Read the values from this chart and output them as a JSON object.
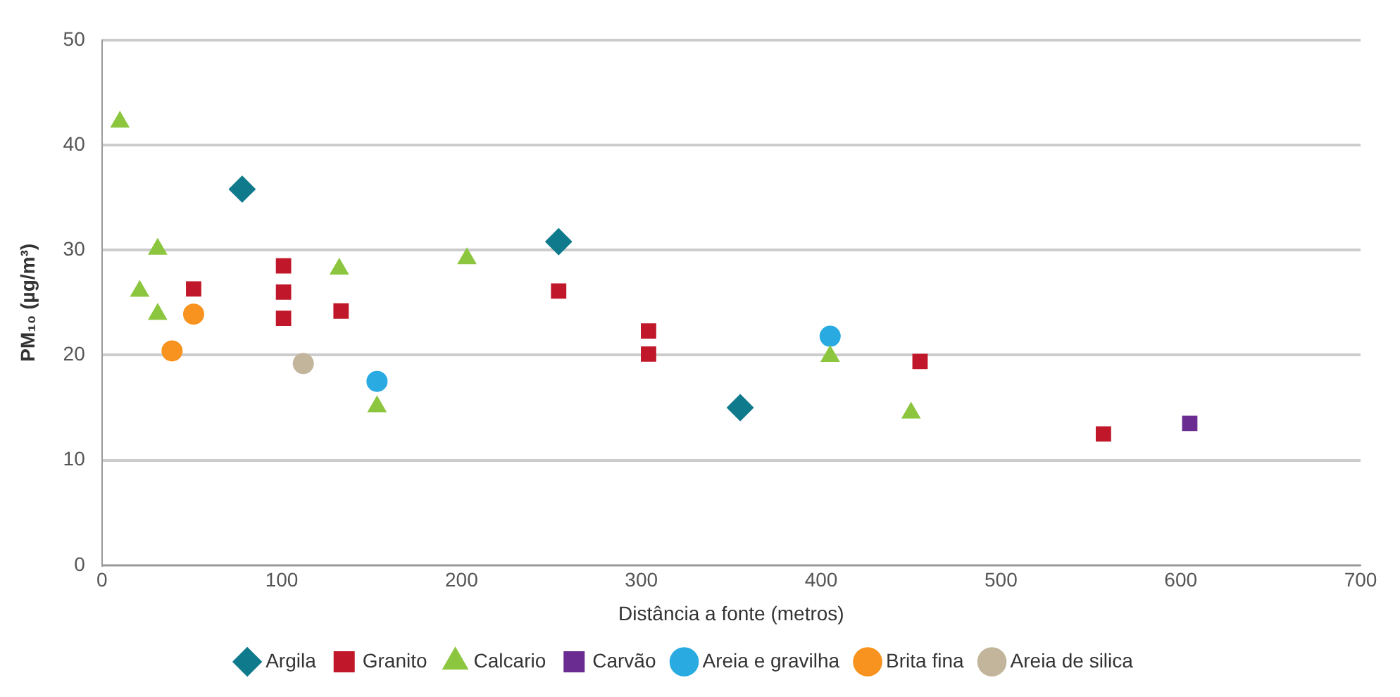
{
  "chart_data": {
    "type": "scatter",
    "xlabel": "Distância a fonte (metros)",
    "ylabel": "PM₁₀ (µg/m³)",
    "xlim": [
      0,
      700
    ],
    "xticks": [
      0,
      100,
      200,
      300,
      400,
      500,
      600,
      700
    ],
    "ylim": [
      0,
      50
    ],
    "yticks": [
      0,
      10,
      20,
      30,
      40,
      50
    ],
    "grid": "y",
    "legend": "bottom",
    "series": [
      {
        "name": "Argila",
        "color": "#0f7a8c",
        "marker": "diamond",
        "x": [
          78,
          254,
          355
        ],
        "values": [
          35.8,
          30.8,
          15
        ]
      },
      {
        "name": "Granito",
        "color": "#c0182a",
        "marker": "square",
        "x": [
          51,
          101,
          101,
          101,
          133,
          254,
          304,
          304,
          455,
          557
        ],
        "values": [
          26.3,
          23.5,
          26,
          28.5,
          24.2,
          26.1,
          22.3,
          20.1,
          19.4,
          12.5
        ]
      },
      {
        "name": "Calcario",
        "color": "#8cc63f",
        "marker": "triangle",
        "x": [
          10,
          21,
          31,
          31,
          132,
          153,
          203,
          405,
          450
        ],
        "values": [
          42.2,
          26.1,
          30.1,
          23.9,
          28.2,
          15.1,
          29.2,
          19.9,
          14.5
        ]
      },
      {
        "name": "Carvão",
        "color": "#6a2c91",
        "marker": "square",
        "x": [
          605
        ],
        "values": [
          13.5
        ]
      },
      {
        "name": "Areia e gravilha",
        "color": "#29abe2",
        "marker": "circle",
        "x": [
          153,
          405
        ],
        "values": [
          17.5,
          21.8
        ]
      },
      {
        "name": "Brita fina",
        "color": "#f7931e",
        "marker": "circle",
        "x": [
          39,
          51
        ],
        "values": [
          20.4,
          23.9
        ]
      },
      {
        "name": "Areia de silica",
        "color": "#c2b59b",
        "marker": "circle",
        "x": [
          112
        ],
        "values": [
          19.2
        ]
      }
    ]
  }
}
